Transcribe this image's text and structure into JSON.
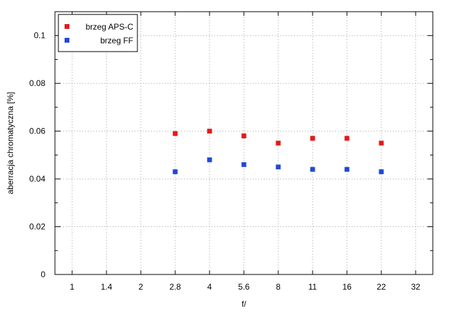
{
  "chart_data": {
    "type": "scatter",
    "xlabel": "f/",
    "ylabel": "aberracja chromatyczna [%]",
    "x_categories": [
      "1",
      "1.4",
      "2",
      "2.8",
      "4",
      "5.6",
      "8",
      "11",
      "16",
      "22",
      "32"
    ],
    "ylim": [
      0,
      0.11
    ],
    "yticks": [
      "0",
      "0.02",
      "0.04",
      "0.06",
      "0.08",
      "0.1"
    ],
    "grid": true,
    "legend_position": "top-left",
    "series": [
      {
        "name": "brzeg APS-C",
        "color": "#e31a1c",
        "marker": "square",
        "x": [
          "2.8",
          "4",
          "5.6",
          "8",
          "11",
          "16",
          "22"
        ],
        "y": [
          0.059,
          0.06,
          0.058,
          0.055,
          0.057,
          0.057,
          0.055
        ]
      },
      {
        "name": "brzeg FF",
        "color": "#1f49d6",
        "marker": "square",
        "x": [
          "2.8",
          "4",
          "5.6",
          "8",
          "11",
          "16",
          "22"
        ],
        "y": [
          0.043,
          0.048,
          0.046,
          0.045,
          0.044,
          0.044,
          0.043
        ]
      }
    ]
  }
}
